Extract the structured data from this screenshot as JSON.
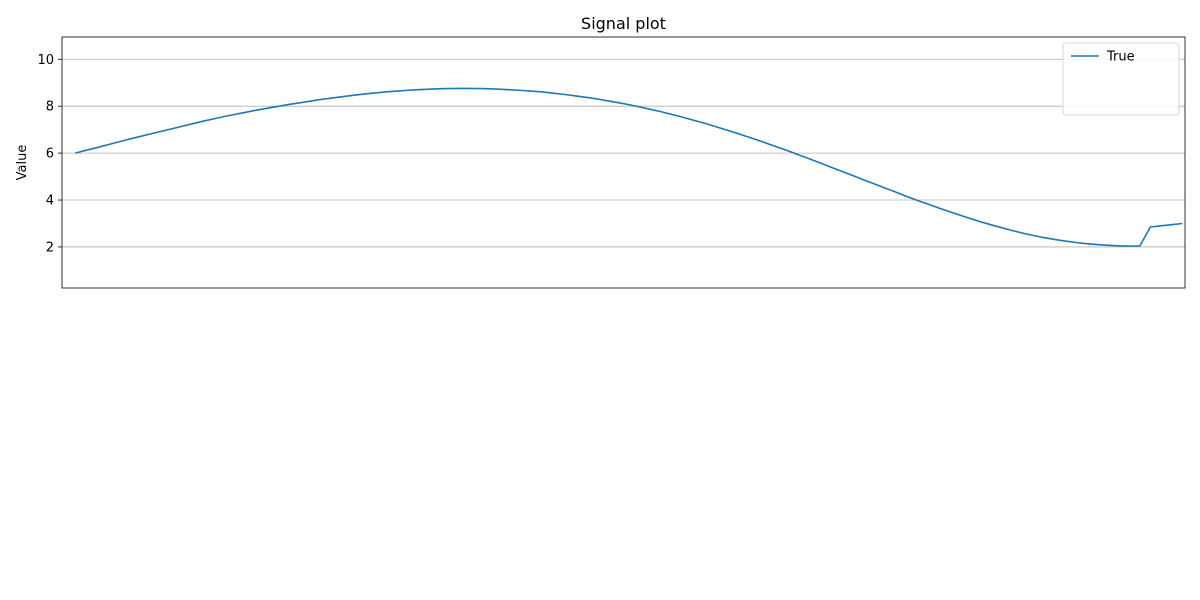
{
  "chart_data": [
    {
      "type": "line",
      "title": "Signal plot",
      "xlabel": "",
      "ylabel": "Value",
      "xlim": [
        -1.25,
        104.25
      ],
      "ylim": [
        0.25,
        10.95
      ],
      "yticks": [
        2,
        4,
        6,
        8,
        10
      ],
      "grid_y": true,
      "legend_position": "top-right",
      "series": [
        {
          "name": "True",
          "color": "#1f77b4",
          "values": [
            6.0,
            6.12,
            6.23,
            6.35,
            6.47,
            6.59,
            6.7,
            6.81,
            6.92,
            7.03,
            7.14,
            7.25,
            7.36,
            7.46,
            7.56,
            7.65,
            7.74,
            7.83,
            7.91,
            7.99,
            8.07,
            8.14,
            8.21,
            8.28,
            8.34,
            8.4,
            8.46,
            8.51,
            8.56,
            8.6,
            8.64,
            8.67,
            8.7,
            8.72,
            8.74,
            8.75,
            8.76,
            8.76,
            8.75,
            8.74,
            8.72,
            8.7,
            8.67,
            8.64,
            8.6,
            8.55,
            8.5,
            8.44,
            8.38,
            8.31,
            8.23,
            8.15,
            8.07,
            7.97,
            7.87,
            7.77,
            7.65,
            7.54,
            7.41,
            7.29,
            7.15,
            7.01,
            6.87,
            6.72,
            6.57,
            6.41,
            6.25,
            6.09,
            5.92,
            5.75,
            5.58,
            5.4,
            5.23,
            5.05,
            4.87,
            4.7,
            4.52,
            4.35,
            4.17,
            4.0,
            3.84,
            3.68,
            3.52,
            3.37,
            3.22,
            3.08,
            2.95,
            2.82,
            2.7,
            2.59,
            2.49,
            2.4,
            2.32,
            2.25,
            2.19,
            2.14,
            2.1,
            2.07,
            2.05,
            2.04,
            2.04,
            2.85,
            2.9,
            2.95,
            3.0
          ]
        }
      ],
      "note": "placeholder"
    }
  ]
}
